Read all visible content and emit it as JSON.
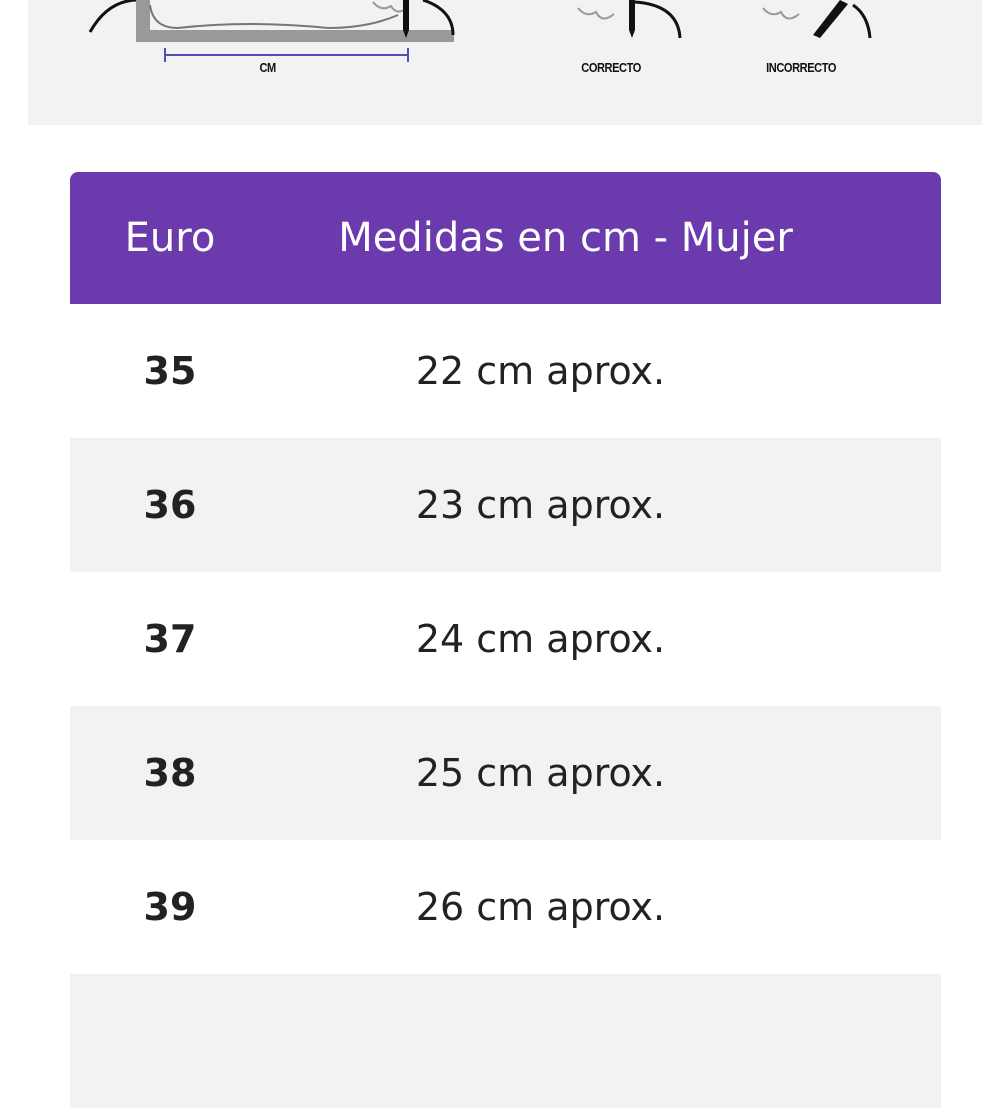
{
  "guide": {
    "measure_label": "CM",
    "correct_label": "CORRECTO",
    "incorrect_label": "INCORRECTO"
  },
  "colors": {
    "header": "#6b3aad",
    "row_alt": "#f2f2f2",
    "guide_bg": "#f2f2f2"
  },
  "table": {
    "headers": [
      "Euro",
      "Medidas en cm - Mujer"
    ],
    "rows": [
      {
        "euro": "35",
        "cm": "22 cm aprox."
      },
      {
        "euro": "36",
        "cm": "23 cm aprox."
      },
      {
        "euro": "37",
        "cm": "24 cm aprox."
      },
      {
        "euro": "38",
        "cm": "25 cm aprox."
      },
      {
        "euro": "39",
        "cm": "26 cm aprox."
      }
    ]
  }
}
